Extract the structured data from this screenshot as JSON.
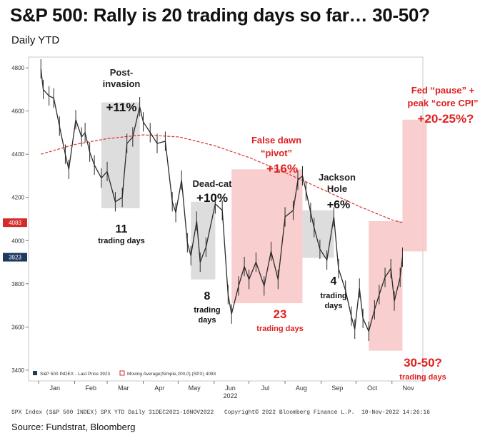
{
  "title": "S&P 500: Rally is 20 trading days so far… 30-50?",
  "subtitle": "Daily YTD",
  "source": "Source: Fundstrat, Bloomberg",
  "footer": {
    "left": "SPX Index (S&P 500 INDEX) SPX YTD  Daily 31DEC2021-10NOV2022",
    "middle": "Copyright© 2022 Bloomberg Finance L.P.",
    "right": "10-Nov-2022 14:26:16"
  },
  "legend": {
    "price": "S&P 500 INDEX - Last Price 3923",
    "ma": "Moving Average(Simple,200,0) (SPX) 4083"
  },
  "colors": {
    "price": "#2b2b2b",
    "moving_average": "#e03030",
    "up_box": "#d9d9d9",
    "rally_box": "#f7c9c9",
    "red_text": "#e02020",
    "last_price_tag": "#1f3a5f",
    "ma_tag": "#d42a2a"
  },
  "chart_data": {
    "type": "line",
    "xlabel": "",
    "ylabel": "",
    "ylim": [
      3350,
      4850
    ],
    "y_ticks": [
      3400,
      3600,
      3800,
      4000,
      4200,
      4400,
      4600,
      4800
    ],
    "x_ticks": [
      "Jan",
      "Feb",
      "Mar",
      "Apr",
      "May",
      "Jun",
      "Jul",
      "Aug",
      "Sep",
      "Oct",
      "Nov"
    ],
    "x_year_label": "2022",
    "last_price": 3923,
    "last_ma": 4083,
    "series": [
      {
        "name": "S&P 500 INDEX",
        "x": [
          "2022-01-03",
          "2022-01-05",
          "2022-01-10",
          "2022-01-14",
          "2022-01-19",
          "2022-01-24",
          "2022-01-27",
          "2022-02-02",
          "2022-02-07",
          "2022-02-10",
          "2022-02-14",
          "2022-02-18",
          "2022-02-24",
          "2022-03-01",
          "2022-03-08",
          "2022-03-14",
          "2022-03-18",
          "2022-03-23",
          "2022-03-29",
          "2022-04-01",
          "2022-04-07",
          "2022-04-13",
          "2022-04-20",
          "2022-04-26",
          "2022-04-29",
          "2022-05-04",
          "2022-05-09",
          "2022-05-12",
          "2022-05-17",
          "2022-05-20",
          "2022-05-25",
          "2022-06-02",
          "2022-06-08",
          "2022-06-13",
          "2022-06-16",
          "2022-06-22",
          "2022-06-27",
          "2022-07-01",
          "2022-07-07",
          "2022-07-14",
          "2022-07-20",
          "2022-07-26",
          "2022-08-01",
          "2022-08-08",
          "2022-08-12",
          "2022-08-16",
          "2022-08-19",
          "2022-08-23",
          "2022-08-26",
          "2022-08-31",
          "2022-09-06",
          "2022-09-12",
          "2022-09-16",
          "2022-09-22",
          "2022-09-27",
          "2022-09-30",
          "2022-10-04",
          "2022-10-07",
          "2022-10-12",
          "2022-10-17",
          "2022-10-21",
          "2022-10-26",
          "2022-10-31",
          "2022-11-03",
          "2022-11-08",
          "2022-11-10"
        ],
        "values": [
          4795,
          4700,
          4670,
          4660,
          4530,
          4400,
          4330,
          4560,
          4480,
          4500,
          4410,
          4350,
          4290,
          4320,
          4180,
          4200,
          4450,
          4480,
          4620,
          4550,
          4500,
          4450,
          4460,
          4180,
          4130,
          4280,
          3990,
          3930,
          4090,
          3900,
          3970,
          4170,
          4140,
          3750,
          3660,
          3790,
          3880,
          3820,
          3900,
          3790,
          3950,
          3820,
          4110,
          4140,
          4280,
          4300,
          4230,
          4130,
          4060,
          3960,
          3910,
          4110,
          3870,
          3770,
          3650,
          3590,
          3780,
          3640,
          3580,
          3680,
          3750,
          3830,
          3870,
          3720,
          3830,
          3923
        ]
      },
      {
        "name": "Moving Average(Simple,200,0)",
        "x": [
          "2022-01-03",
          "2022-02-01",
          "2022-03-01",
          "2022-04-01",
          "2022-05-02",
          "2022-06-01",
          "2022-07-01",
          "2022-08-01",
          "2022-09-01",
          "2022-10-03",
          "2022-11-01",
          "2022-11-10"
        ],
        "values": [
          4400,
          4445,
          4472,
          4490,
          4480,
          4440,
          4385,
          4315,
          4240,
          4160,
          4096,
          4083
        ]
      }
    ],
    "annotations": [
      {
        "box": "gray",
        "x0": "2022-02-24",
        "x1": "2022-03-29",
        "y0": 4150,
        "y1": 4640,
        "label_top": [
          "Post-",
          "invasion"
        ],
        "gain": "+11%",
        "days": "11",
        "days_label": "trading days"
      },
      {
        "box": "gray",
        "x0": "2022-05-12",
        "x1": "2022-06-02",
        "y0": 3820,
        "y1": 4180,
        "label_top": [
          "Dead-cat"
        ],
        "gain": "+10%",
        "days": "8",
        "days_label": [
          "trading",
          "days"
        ]
      },
      {
        "box": "red",
        "x0": "2022-06-16",
        "x1": "2022-08-16",
        "y0": 3710,
        "y1": 4330,
        "label_top": [
          "False dawn",
          "“pivot”"
        ],
        "gain": "+16%",
        "days": "23",
        "days_label": "trading days"
      },
      {
        "box": "gray",
        "x0": "2022-08-16",
        "x1": "2022-09-12",
        "y0": 3920,
        "y1": 4140,
        "label_top": [
          "Jackson",
          "Hole"
        ],
        "gain": "+6%",
        "days": "4",
        "days_label": [
          "trading",
          "days"
        ]
      },
      {
        "box": "red",
        "x0": "2022-10-12",
        "x1": "2022-11-10",
        "y0": 3490,
        "y1": 4090,
        "days": "30-50?",
        "days_label": "trading days"
      },
      {
        "box": "red",
        "x0": "2022-11-10",
        "x1": "2022-12-01",
        "y0": 3950,
        "y1": 4560,
        "label_top": [
          "Fed “pause” +",
          "peak “core CPI”"
        ],
        "gain": "+20-25%?"
      }
    ]
  }
}
